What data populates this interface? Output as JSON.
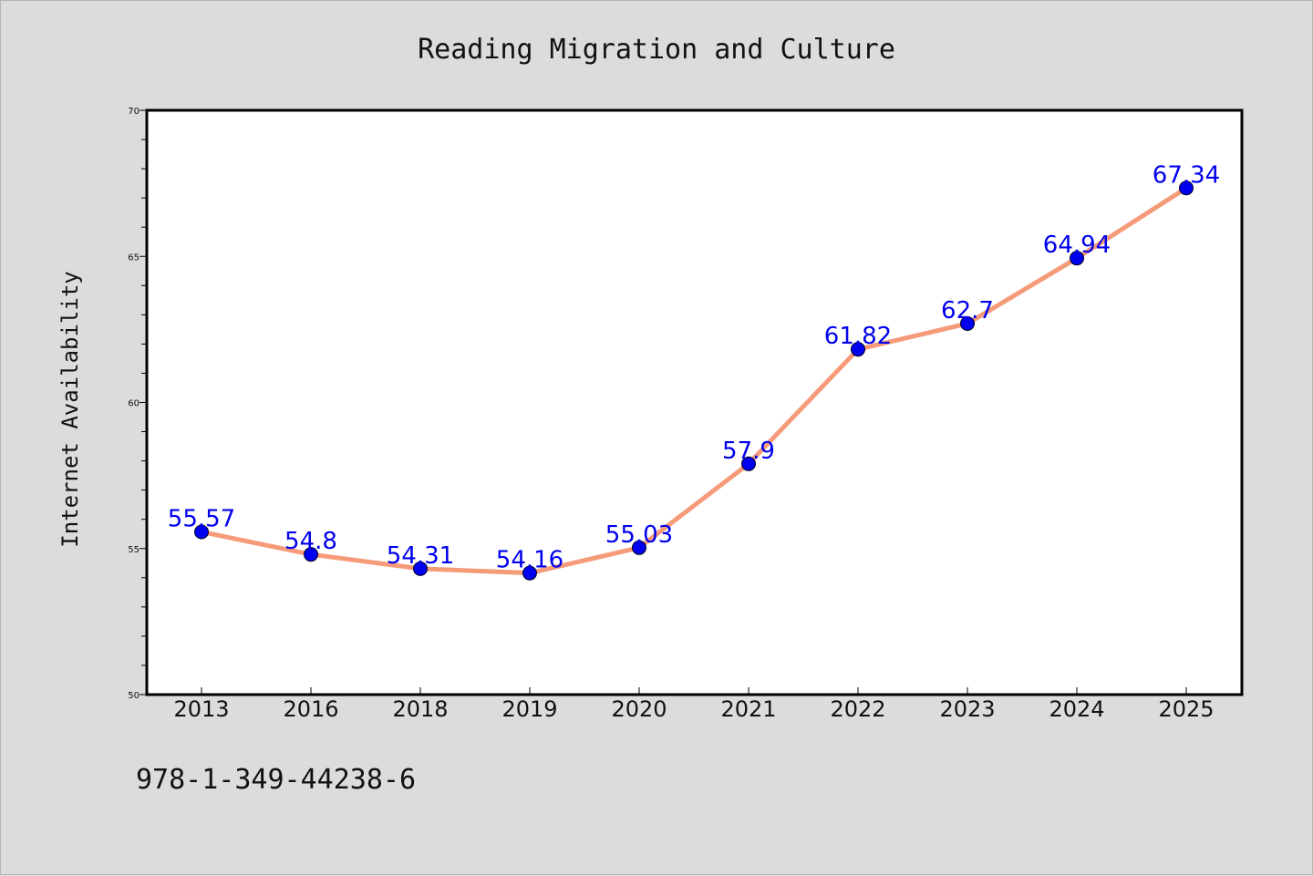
{
  "chart_data": {
    "type": "line",
    "title": "Reading Migration and Culture",
    "xlabel": "",
    "ylabel": "Internet Availability",
    "categories": [
      "2013",
      "2016",
      "2018",
      "2019",
      "2020",
      "2021",
      "2022",
      "2023",
      "2024",
      "2025"
    ],
    "series": [
      {
        "values": [
          55.57,
          54.8,
          54.31,
          54.16,
          55.03,
          57.9,
          61.82,
          62.7,
          64.94,
          67.34
        ],
        "data_labels": [
          "55.57",
          "54.8",
          "54.31",
          "54.16",
          "55.03",
          "57.9",
          "61.82",
          "62.7",
          "64.94",
          "67.34"
        ]
      }
    ],
    "ylim": [
      50,
      70
    ],
    "yticks": [
      "50",
      "55",
      "60",
      "65",
      "70"
    ],
    "grid": false,
    "legend": "none",
    "colors": {
      "line": "#f59b7a",
      "marker": "#0000ee",
      "data_label": "#0000ee",
      "background": "#dcdcdc",
      "plot_background": "#ffffff"
    }
  },
  "annotation": "978-1-349-44238-6"
}
